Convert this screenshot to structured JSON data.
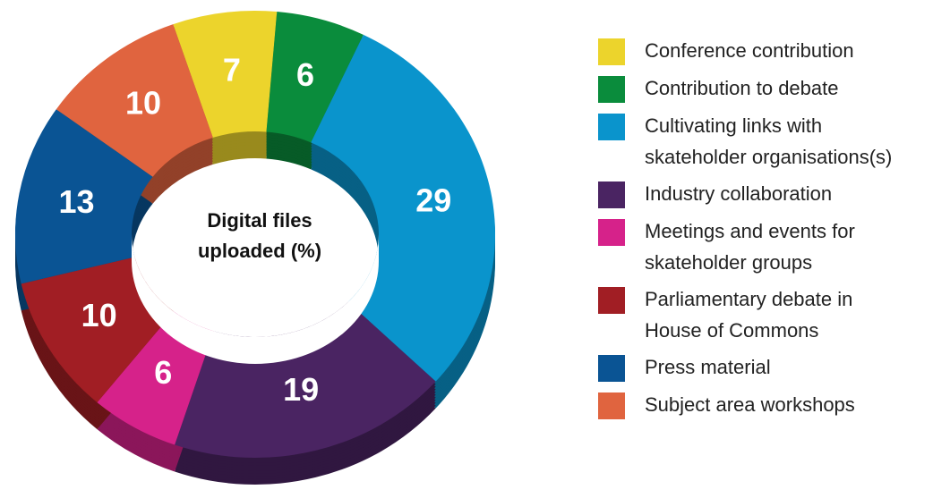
{
  "chart_data": {
    "type": "donut",
    "title": "Digital files uploaded (%)",
    "categories": [
      "Conference contribution",
      "Contribution to debate",
      "Cultivating links with skateholder organisations(s)",
      "Industry collaboration",
      "Meetings and events for skateholder groups",
      "Parliamentary debate in House of Commons",
      "Press material",
      "Subject area workshops"
    ],
    "values": [
      7,
      6,
      29,
      19,
      6,
      10,
      13,
      10
    ],
    "colors": [
      "#ecd42c",
      "#0a8c3c",
      "#0a94cc",
      "#4a2462",
      "#d6228a",
      "#a11e24",
      "#0a5494",
      "#e0643f"
    ],
    "legend": "right"
  }
}
